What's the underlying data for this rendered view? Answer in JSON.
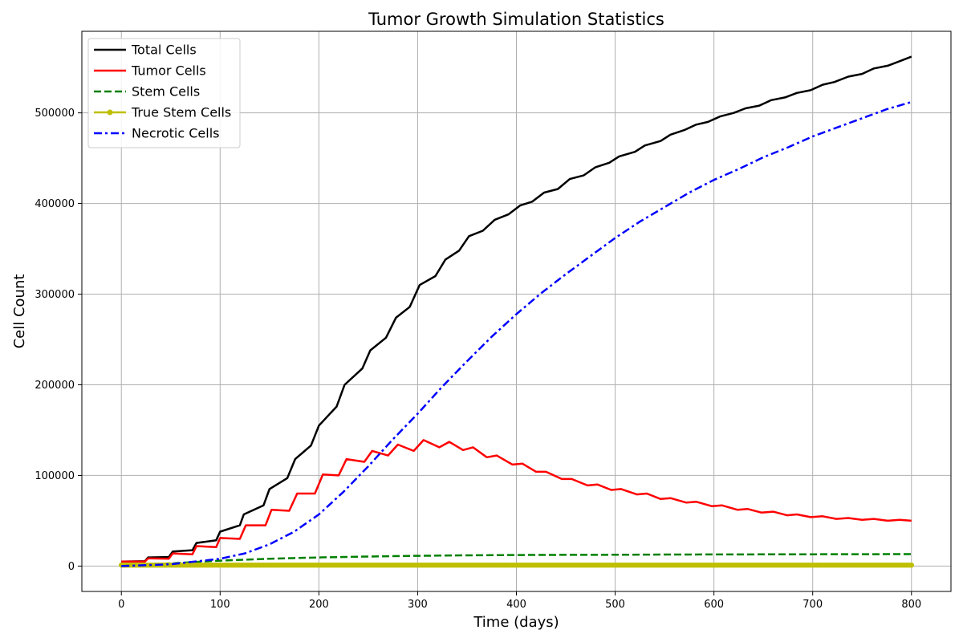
{
  "chart_data": {
    "type": "line",
    "title": "Tumor Growth Simulation Statistics",
    "xlabel": "Time (days)",
    "ylabel": "Cell Count",
    "xlim": [
      -40,
      840
    ],
    "ylim": [
      -28000,
      590000
    ],
    "xticks": [
      0,
      100,
      200,
      300,
      400,
      500,
      600,
      700,
      800
    ],
    "yticks": [
      0,
      100000,
      200000,
      300000,
      400000,
      500000
    ],
    "grid": true,
    "legend_position": "top-left",
    "series": [
      {
        "name": "Total Cells",
        "color": "#000000",
        "style": "solid",
        "points": [
          [
            0,
            5000
          ],
          [
            24,
            5500
          ],
          [
            27,
            9500
          ],
          [
            48,
            10000
          ],
          [
            52,
            16000
          ],
          [
            72,
            17500
          ],
          [
            76,
            25500
          ],
          [
            96,
            28500
          ],
          [
            100,
            38000
          ],
          [
            120,
            45000
          ],
          [
            124,
            57000
          ],
          [
            144,
            67000
          ],
          [
            150,
            85000
          ],
          [
            168,
            97000
          ],
          [
            176,
            118000
          ],
          [
            192,
            133000
          ],
          [
            200,
            155000
          ],
          [
            218,
            176000
          ],
          [
            226,
            200000
          ],
          [
            244,
            218000
          ],
          [
            252,
            238000
          ],
          [
            268,
            252000
          ],
          [
            278,
            274000
          ],
          [
            292,
            286000
          ],
          [
            302,
            310000
          ],
          [
            318,
            320000
          ],
          [
            328,
            338000
          ],
          [
            342,
            348000
          ],
          [
            352,
            364000
          ],
          [
            366,
            370000
          ],
          [
            378,
            382000
          ],
          [
            392,
            388000
          ],
          [
            404,
            398000
          ],
          [
            416,
            402000
          ],
          [
            428,
            412000
          ],
          [
            442,
            416000
          ],
          [
            454,
            427000
          ],
          [
            468,
            431000
          ],
          [
            480,
            440000
          ],
          [
            494,
            445000
          ],
          [
            504,
            452000
          ],
          [
            520,
            457000
          ],
          [
            530,
            464000
          ],
          [
            546,
            469000
          ],
          [
            556,
            476000
          ],
          [
            570,
            481000
          ],
          [
            582,
            487000
          ],
          [
            594,
            490000
          ],
          [
            606,
            496000
          ],
          [
            620,
            500000
          ],
          [
            632,
            505000
          ],
          [
            646,
            508000
          ],
          [
            658,
            514000
          ],
          [
            672,
            517000
          ],
          [
            684,
            522000
          ],
          [
            698,
            525000
          ],
          [
            710,
            531000
          ],
          [
            722,
            534000
          ],
          [
            736,
            540000
          ],
          [
            750,
            543000
          ],
          [
            762,
            549000
          ],
          [
            776,
            552000
          ],
          [
            788,
            557000
          ],
          [
            800,
            562000
          ]
        ]
      },
      {
        "name": "Tumor Cells",
        "color": "#ff0000",
        "style": "solid",
        "points": [
          [
            0,
            5000
          ],
          [
            24,
            5000
          ],
          [
            27,
            8500
          ],
          [
            48,
            8000
          ],
          [
            52,
            14000
          ],
          [
            72,
            13000
          ],
          [
            76,
            22000
          ],
          [
            96,
            21000
          ],
          [
            100,
            31000
          ],
          [
            120,
            30000
          ],
          [
            126,
            45000
          ],
          [
            146,
            45000
          ],
          [
            152,
            62000
          ],
          [
            170,
            61000
          ],
          [
            178,
            80000
          ],
          [
            196,
            80000
          ],
          [
            204,
            101000
          ],
          [
            220,
            100000
          ],
          [
            228,
            118000
          ],
          [
            246,
            115000
          ],
          [
            254,
            127000
          ],
          [
            270,
            122000
          ],
          [
            280,
            134000
          ],
          [
            296,
            127000
          ],
          [
            306,
            139000
          ],
          [
            322,
            131000
          ],
          [
            332,
            137000
          ],
          [
            346,
            128000
          ],
          [
            356,
            131000
          ],
          [
            370,
            120000
          ],
          [
            380,
            122000
          ],
          [
            396,
            112000
          ],
          [
            406,
            113000
          ],
          [
            420,
            104000
          ],
          [
            430,
            104000
          ],
          [
            446,
            96000
          ],
          [
            456,
            96000
          ],
          [
            472,
            89000
          ],
          [
            482,
            90000
          ],
          [
            496,
            84000
          ],
          [
            506,
            85000
          ],
          [
            522,
            79000
          ],
          [
            532,
            80000
          ],
          [
            546,
            74000
          ],
          [
            556,
            75000
          ],
          [
            572,
            70000
          ],
          [
            582,
            71000
          ],
          [
            598,
            66000
          ],
          [
            608,
            67000
          ],
          [
            624,
            62000
          ],
          [
            634,
            63000
          ],
          [
            648,
            59000
          ],
          [
            660,
            60000
          ],
          [
            674,
            56000
          ],
          [
            684,
            57000
          ],
          [
            698,
            54000
          ],
          [
            710,
            55000
          ],
          [
            724,
            52000
          ],
          [
            736,
            53000
          ],
          [
            750,
            51000
          ],
          [
            762,
            52000
          ],
          [
            776,
            50000
          ],
          [
            788,
            51000
          ],
          [
            800,
            50000
          ]
        ]
      },
      {
        "name": "Stem Cells",
        "color": "#008000",
        "style": "dashed",
        "points": [
          [
            0,
            1000
          ],
          [
            50,
            3000
          ],
          [
            100,
            6000
          ],
          [
            150,
            8000
          ],
          [
            200,
            9500
          ],
          [
            250,
            10500
          ],
          [
            300,
            11300
          ],
          [
            350,
            11800
          ],
          [
            400,
            12200
          ],
          [
            450,
            12400
          ],
          [
            500,
            12500
          ],
          [
            550,
            12700
          ],
          [
            600,
            12800
          ],
          [
            650,
            12900
          ],
          [
            700,
            13000
          ],
          [
            750,
            13100
          ],
          [
            800,
            13200
          ]
        ]
      },
      {
        "name": "True Stem Cells",
        "color": "#bfbf00",
        "style": "markers",
        "points": [
          [
            0,
            1000
          ],
          [
            100,
            1000
          ],
          [
            200,
            1000
          ],
          [
            300,
            1000
          ],
          [
            400,
            1000
          ],
          [
            500,
            1000
          ],
          [
            600,
            1000
          ],
          [
            700,
            1000
          ],
          [
            800,
            1000
          ]
        ]
      },
      {
        "name": "Necrotic Cells",
        "color": "#0000ff",
        "style": "dashdot",
        "points": [
          [
            0,
            0
          ],
          [
            50,
            2000
          ],
          [
            100,
            8000
          ],
          [
            125,
            14000
          ],
          [
            150,
            24000
          ],
          [
            175,
            38000
          ],
          [
            200,
            57000
          ],
          [
            225,
            82000
          ],
          [
            250,
            110000
          ],
          [
            275,
            140000
          ],
          [
            300,
            168000
          ],
          [
            325,
            198000
          ],
          [
            350,
            226000
          ],
          [
            375,
            253000
          ],
          [
            400,
            278000
          ],
          [
            425,
            301000
          ],
          [
            450,
            322000
          ],
          [
            475,
            342000
          ],
          [
            500,
            362000
          ],
          [
            525,
            380000
          ],
          [
            550,
            396000
          ],
          [
            575,
            412000
          ],
          [
            600,
            426000
          ],
          [
            625,
            438000
          ],
          [
            650,
            451000
          ],
          [
            675,
            462000
          ],
          [
            700,
            474000
          ],
          [
            725,
            484000
          ],
          [
            750,
            494000
          ],
          [
            775,
            504000
          ],
          [
            800,
            512000
          ]
        ]
      }
    ]
  }
}
